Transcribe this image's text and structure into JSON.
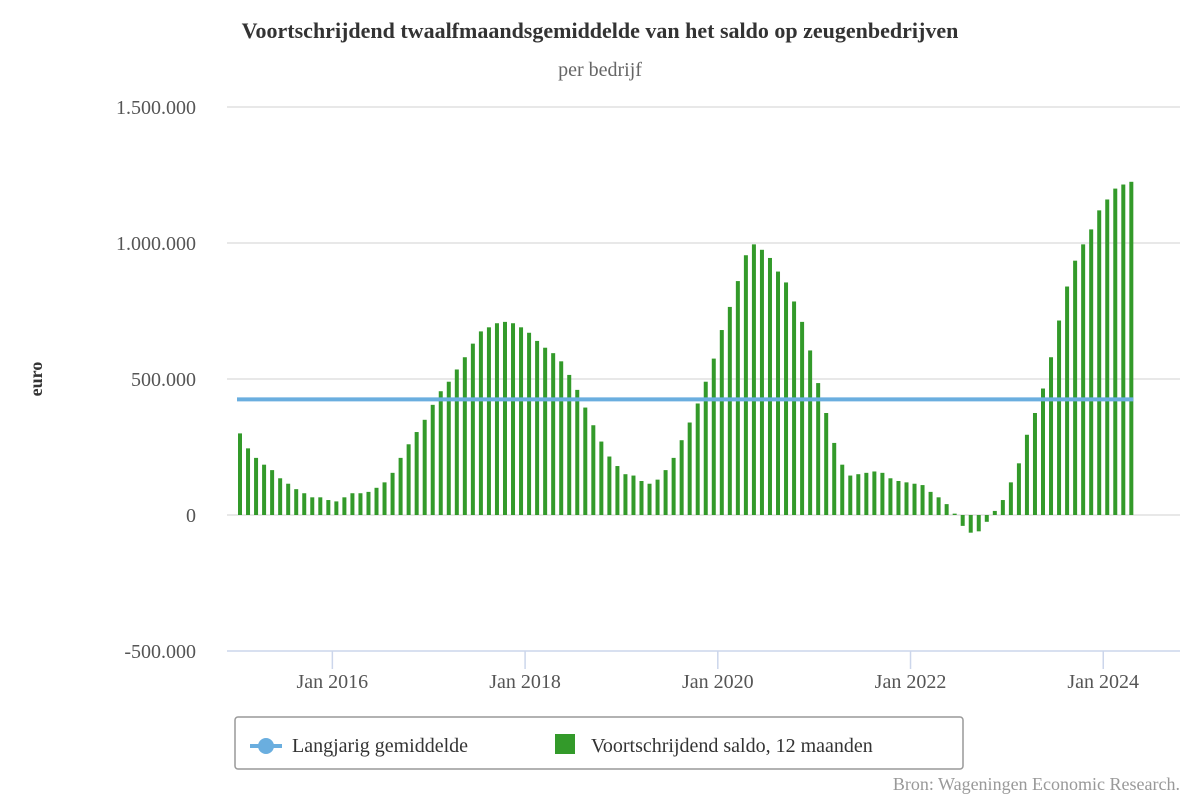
{
  "chart_data": {
    "type": "bar",
    "title": "Voortschrijdend twaalfmaandsgemiddelde van het saldo op zeugenbedrijven",
    "subtitle": "per bedrijf",
    "ylabel": "euro",
    "xlabel": "",
    "ylim": [
      -500000,
      1500000
    ],
    "y_ticks": [
      {
        "value": 1500000,
        "label": "1.500.000"
      },
      {
        "value": 1000000,
        "label": "1.000.000"
      },
      {
        "value": 500000,
        "label": "500.000"
      },
      {
        "value": 0,
        "label": "0"
      },
      {
        "value": -500000,
        "label": "-500.000"
      }
    ],
    "x_start": "2015-01",
    "x_ticks": [
      {
        "label": "Jan 2016",
        "month_index": 12
      },
      {
        "label": "Jan 2018",
        "month_index": 36
      },
      {
        "label": "Jan 2020",
        "month_index": 60
      },
      {
        "label": "Jan 2022",
        "month_index": 84
      },
      {
        "label": "Jan 2024",
        "month_index": 108
      }
    ],
    "series": [
      {
        "name": "Langjarig gemiddelde",
        "type": "line",
        "color": "#6aaedf",
        "value": 425000
      },
      {
        "name": "Voortschrijdend saldo, 12 maanden",
        "type": "bar",
        "color": "#339a2a",
        "values": [
          300000,
          245000,
          210000,
          185000,
          165000,
          135000,
          115000,
          95000,
          80000,
          65000,
          65000,
          55000,
          50000,
          65000,
          80000,
          80000,
          85000,
          100000,
          120000,
          155000,
          210000,
          260000,
          305000,
          350000,
          405000,
          455000,
          490000,
          535000,
          580000,
          630000,
          675000,
          690000,
          705000,
          710000,
          705000,
          690000,
          670000,
          640000,
          615000,
          595000,
          565000,
          515000,
          460000,
          395000,
          330000,
          270000,
          215000,
          180000,
          150000,
          145000,
          125000,
          115000,
          130000,
          165000,
          210000,
          275000,
          340000,
          410000,
          490000,
          575000,
          680000,
          765000,
          860000,
          955000,
          995000,
          975000,
          945000,
          895000,
          855000,
          785000,
          710000,
          605000,
          485000,
          375000,
          265000,
          185000,
          145000,
          150000,
          155000,
          160000,
          155000,
          135000,
          125000,
          120000,
          115000,
          110000,
          85000,
          65000,
          40000,
          5000,
          -40000,
          -65000,
          -60000,
          -25000,
          15000,
          55000,
          120000,
          190000,
          295000,
          375000,
          465000,
          580000,
          715000,
          840000,
          935000,
          995000,
          1050000,
          1120000,
          1160000,
          1200000,
          1215000,
          1225000
        ]
      }
    ],
    "legend": {
      "placement": "bottom"
    },
    "grid": true
  },
  "source": "Bron: Wageningen Economic Research."
}
